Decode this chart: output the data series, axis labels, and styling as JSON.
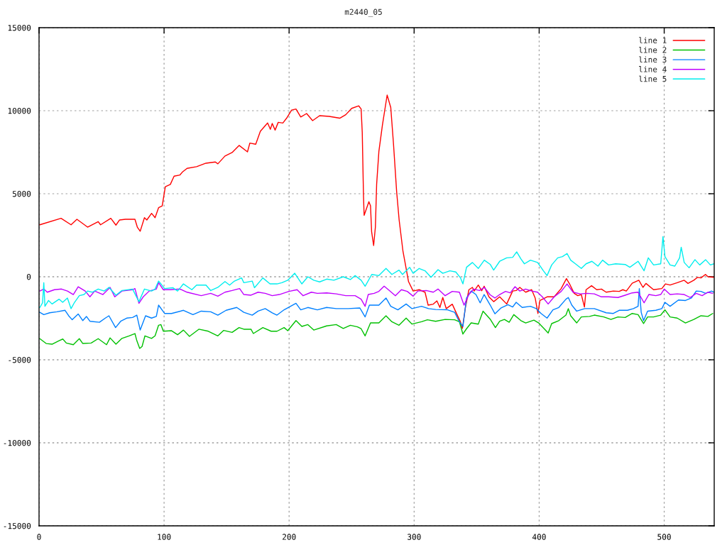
{
  "chart_data": {
    "type": "line",
    "title": "m2440_05",
    "xlim": [
      0,
      540
    ],
    "ylim": [
      -15000,
      15000
    ],
    "xticks": [
      0,
      100,
      200,
      300,
      400,
      500
    ],
    "yticks": [
      -15000,
      -10000,
      -5000,
      0,
      5000,
      10000,
      15000
    ],
    "grid": true,
    "legend": "top right",
    "marker": "none",
    "line_style": "solid",
    "series": [
      {
        "name": "line 1",
        "color": "#ff0000",
        "x": [
          0.6,
          17.6,
          25.6,
          30.3,
          38.8,
          47.3,
          49.2,
          57.4,
          61.5,
          64.4,
          69.1,
          76.7,
          78.6,
          80.9,
          84.3,
          86.2,
          90,
          92.8,
          95.6,
          98.5,
          101,
          105,
          108,
          112.7,
          114.6,
          118.4,
          126,
          133.5,
          141,
          143,
          148.7,
          154.4,
          160,
          166.7,
          168.6,
          173.3,
          177,
          182.8,
          185,
          186.5,
          188.8,
          191.3,
          195,
          198,
          202,
          205.5,
          209.3,
          214,
          218.8,
          224.4,
          232,
          240.5,
          245.3,
          250,
          255.7,
          257.6,
          258.5,
          259.5,
          260,
          263.8,
          265.1,
          266,
          267.6,
          269,
          270,
          271.8,
          274.6,
          278.4,
          281.3,
          283.5,
          286,
          288,
          291,
          293.6,
          295.5,
          299.2,
          304,
          308.7,
          311.2,
          315.3,
          318.2,
          320.6,
          322.9,
          325.7,
          330.5,
          334.3,
          337,
          338.6,
          341,
          343.8,
          346.6,
          348,
          351.3,
          354,
          356,
          359.8,
          363.6,
          368.4,
          374,
          378.8,
          381.6,
          384.5,
          389.2,
          394,
          396.8,
          399,
          400.6,
          406.3,
          412,
          417.6,
          421.8,
          424.3,
          428,
          430.9,
          433.7,
          436.2,
          437.5,
          441.9,
          446,
          449.8,
          453.6,
          459.3,
          464,
          466.9,
          469.7,
          474.4,
          479.7,
          483,
          485.4,
          491.5,
          498.1,
          501,
          504.7,
          510.4,
          516,
          519,
          523.7,
          526.5,
          529.4,
          533,
          535,
          539.8
        ],
        "values": [
          3130,
          3520,
          3130,
          3460,
          2990,
          3320,
          3130,
          3520,
          3110,
          3420,
          3460,
          3460,
          2990,
          2740,
          3560,
          3420,
          3820,
          3560,
          4160,
          4270,
          5420,
          5560,
          6060,
          6130,
          6300,
          6530,
          6630,
          6840,
          6910,
          6800,
          7270,
          7480,
          7910,
          7520,
          8050,
          7980,
          8760,
          9260,
          8880,
          9230,
          8830,
          9300,
          9260,
          9550,
          10040,
          10100,
          9620,
          9830,
          9400,
          9700,
          9660,
          9550,
          9760,
          10140,
          10290,
          10100,
          8690,
          4840,
          3700,
          4520,
          4270,
          2710,
          1880,
          2990,
          5560,
          7550,
          9120,
          10940,
          10190,
          7980,
          5130,
          3420,
          1570,
          500,
          -290,
          -860,
          -780,
          -930,
          -1710,
          -1650,
          -1450,
          -1850,
          -1250,
          -1920,
          -1650,
          -2280,
          -2710,
          -3110,
          -1850,
          -780,
          -640,
          -860,
          -500,
          -840,
          -570,
          -1210,
          -1500,
          -1210,
          -1640,
          -860,
          -830,
          -640,
          -930,
          -780,
          -1280,
          -2210,
          -1430,
          -1210,
          -1210,
          -710,
          -110,
          -430,
          -1000,
          -1140,
          -1070,
          -1820,
          -780,
          -540,
          -780,
          -740,
          -930,
          -860,
          -880,
          -780,
          -860,
          -390,
          -210,
          -640,
          -400,
          -780,
          -710,
          -430,
          -500,
          -360,
          -210,
          -400,
          -210,
          -40,
          -70,
          140,
          0,
          -30
        ]
      },
      {
        "name": "line 2",
        "color": "#00c000",
        "x": [
          0.6,
          5.7,
          10.4,
          16,
          19,
          21.8,
          27.4,
          32.2,
          35,
          41.7,
          47.3,
          54,
          56.8,
          61.5,
          66.3,
          72,
          76.7,
          78.2,
          80.5,
          82.4,
          84.7,
          90,
          92.8,
          95.6,
          97.5,
          99.4,
          106,
          110.8,
          115.5,
          120.3,
          127.8,
          135.4,
          143,
          147.7,
          154.4,
          160,
          163.8,
          169.5,
          171.4,
          179,
          185.6,
          190.3,
          196,
          198.9,
          205.5,
          210.2,
          215,
          219.7,
          230,
          237.7,
          243.3,
          249,
          254.7,
          257.6,
          260.8,
          265.1,
          271.8,
          277.5,
          282.2,
          287.9,
          293.6,
          298.3,
          305.9,
          310.6,
          317.2,
          324.8,
          332.4,
          336.2,
          339,
          341.9,
          345.6,
          351.3,
          355.1,
          360.8,
          365,
          368.4,
          372.2,
          376,
          379.7,
          385.4,
          389.2,
          395.8,
          399.6,
          407.2,
          410,
          415.7,
          421.4,
          423.3,
          425.2,
          430,
          433.7,
          440.3,
          444.1,
          451.7,
          457.4,
          463,
          468.8,
          474.4,
          479.1,
          483.5,
          486.7,
          491.5,
          497.2,
          500.6,
          504.7,
          510.4,
          517,
          523.7,
          529.4,
          535,
          538.8
        ],
        "values": [
          -3730,
          -4020,
          -4060,
          -3850,
          -3750,
          -3990,
          -4090,
          -3730,
          -4020,
          -3990,
          -3730,
          -4090,
          -3680,
          -4060,
          -3710,
          -3560,
          -3420,
          -3850,
          -4320,
          -4200,
          -3560,
          -3710,
          -3560,
          -2920,
          -2880,
          -3280,
          -3250,
          -3490,
          -3210,
          -3590,
          -3160,
          -3280,
          -3560,
          -3230,
          -3350,
          -3060,
          -3160,
          -3160,
          -3420,
          -3060,
          -3280,
          -3280,
          -3060,
          -3250,
          -2640,
          -2990,
          -2880,
          -3210,
          -2960,
          -2880,
          -3110,
          -2920,
          -3020,
          -3130,
          -3560,
          -2780,
          -2780,
          -2350,
          -2710,
          -2920,
          -2490,
          -2850,
          -2710,
          -2590,
          -2680,
          -2570,
          -2590,
          -2710,
          -3450,
          -3130,
          -2780,
          -2850,
          -2070,
          -2550,
          -3060,
          -2680,
          -2570,
          -2740,
          -2280,
          -2640,
          -2780,
          -2610,
          -2780,
          -3390,
          -2820,
          -2640,
          -2310,
          -1920,
          -2350,
          -2780,
          -2420,
          -2390,
          -2310,
          -2420,
          -2570,
          -2420,
          -2450,
          -2210,
          -2280,
          -2820,
          -2420,
          -2420,
          -2310,
          -1990,
          -2420,
          -2490,
          -2780,
          -2570,
          -2350,
          -2390,
          -2210
        ]
      },
      {
        "name": "line 3",
        "color": "#0080ff",
        "x": [
          0.6,
          3.8,
          8.5,
          14.2,
          20.8,
          23.7,
          26.5,
          31.3,
          35,
          37.9,
          40.7,
          48.3,
          53,
          55.9,
          61.2,
          65.3,
          70.1,
          74.8,
          78.2,
          80.9,
          85.2,
          90,
          93.8,
          95.6,
          100.4,
          106,
          115.5,
          123.1,
          129.7,
          137.3,
          143,
          149.6,
          158.1,
          163.8,
          170.5,
          175.2,
          180.9,
          186.5,
          190.3,
          196,
          205.5,
          209.3,
          215,
          222.6,
          230,
          237.7,
          247.2,
          256.6,
          260.8,
          264.2,
          271.8,
          277.5,
          281.3,
          287,
          293.6,
          298.3,
          305.9,
          311.5,
          317.2,
          326.7,
          332.4,
          336.2,
          339,
          341.9,
          345.6,
          349.4,
          352.8,
          356,
          360.8,
          364.6,
          369.3,
          375,
          378.8,
          381.6,
          386.4,
          393,
          397.7,
          401.5,
          406.3,
          411,
          415.7,
          421.4,
          423.3,
          426.1,
          430,
          436.5,
          444.1,
          453.6,
          459.3,
          464,
          470.6,
          475.4,
          479.1,
          480.1,
          481.6,
          483.5,
          486.7,
          493.3,
          498.1,
          500.6,
          504.7,
          511.4,
          517,
          521.8,
          525.6,
          529.4,
          533.1,
          537.9,
          539.8
        ],
        "values": [
          -2140,
          -2280,
          -2170,
          -2110,
          -2020,
          -2350,
          -2590,
          -2240,
          -2640,
          -2390,
          -2680,
          -2740,
          -2490,
          -2350,
          -3060,
          -2680,
          -2490,
          -2450,
          -2310,
          -3210,
          -2350,
          -2490,
          -2390,
          -1710,
          -2210,
          -2210,
          -2020,
          -2280,
          -2070,
          -2110,
          -2310,
          -2020,
          -1850,
          -2140,
          -2310,
          -2070,
          -1920,
          -2170,
          -2310,
          -1990,
          -1600,
          -1990,
          -1850,
          -1990,
          -1850,
          -1920,
          -1920,
          -1880,
          -2420,
          -1710,
          -1710,
          -1280,
          -1780,
          -1990,
          -1640,
          -1920,
          -1780,
          -1920,
          -1970,
          -1990,
          -2140,
          -2710,
          -2990,
          -1280,
          -860,
          -1070,
          -1570,
          -1070,
          -1700,
          -2230,
          -1890,
          -1680,
          -1820,
          -1540,
          -1850,
          -1780,
          -1920,
          -2210,
          -2490,
          -1990,
          -1850,
          -1350,
          -1250,
          -1710,
          -2070,
          -1920,
          -1920,
          -2170,
          -2210,
          -2020,
          -2020,
          -1920,
          -1780,
          -710,
          -2140,
          -2640,
          -2070,
          -2020,
          -1920,
          -1540,
          -1780,
          -1400,
          -1430,
          -1280,
          -860,
          -880,
          -1000,
          -860,
          -930
        ]
      },
      {
        "name": "line 4",
        "color": "#c000ff",
        "x": [
          0.6,
          3.8,
          6.6,
          12.3,
          18,
          22.7,
          27.4,
          31.3,
          36.9,
          40.7,
          44.5,
          51.1,
          56.8,
          60.6,
          66.3,
          74.8,
          76.7,
          79.9,
          83.3,
          88.1,
          93.8,
          95.6,
          99.4,
          105.1,
          112.7,
          118.4,
          129.7,
          137.3,
          143,
          148.7,
          154.4,
          160.4,
          163.8,
          169.5,
          175.2,
          180.9,
          186.5,
          192.2,
          199.8,
          206.4,
          211.2,
          217.8,
          222.6,
          230.1,
          237.7,
          245.3,
          252.8,
          257.6,
          260.8,
          263.3,
          268,
          271.8,
          276,
          279.4,
          285,
          289.8,
          294.5,
          299.2,
          303,
          309.7,
          315.3,
          319.1,
          324.8,
          330.5,
          336.2,
          339.9,
          343.8,
          347.6,
          352.3,
          356.1,
          360.8,
          364.6,
          368.4,
          373.1,
          376.9,
          380.7,
          384.5,
          389.2,
          394,
          398.7,
          402.5,
          407.2,
          412,
          417.6,
          422.3,
          427.1,
          432.8,
          438.5,
          444.1,
          449.8,
          455.5,
          463,
          468.8,
          474.4,
          479.1,
          483.9,
          487.7,
          493.3,
          497.2,
          500,
          504.7,
          510.4,
          516,
          520.8,
          525.6,
          530.3,
          535,
          538.8
        ],
        "values": [
          -860,
          -740,
          -930,
          -780,
          -740,
          -860,
          -1070,
          -600,
          -860,
          -1210,
          -860,
          -1070,
          -640,
          -1210,
          -860,
          -780,
          -710,
          -1600,
          -1210,
          -860,
          -740,
          -360,
          -780,
          -780,
          -740,
          -930,
          -1140,
          -1000,
          -1170,
          -930,
          -830,
          -710,
          -1070,
          -1110,
          -930,
          -1000,
          -1140,
          -1070,
          -880,
          -780,
          -1140,
          -930,
          -1000,
          -970,
          -1030,
          -1140,
          -1140,
          -1350,
          -1780,
          -1070,
          -1000,
          -880,
          -570,
          -780,
          -1140,
          -780,
          -880,
          -1170,
          -860,
          -830,
          -930,
          -740,
          -1140,
          -880,
          -930,
          -1710,
          -1070,
          -740,
          -830,
          -640,
          -1090,
          -1280,
          -1070,
          -880,
          -970,
          -600,
          -860,
          -740,
          -860,
          -930,
          -1210,
          -1640,
          -1210,
          -880,
          -430,
          -930,
          -1030,
          -1000,
          -1030,
          -1210,
          -1210,
          -1250,
          -1110,
          -970,
          -930,
          -1570,
          -1070,
          -1140,
          -1070,
          -740,
          -1070,
          -1030,
          -1070,
          -1250,
          -1000,
          -1140,
          -930,
          -1000
        ]
      },
      {
        "name": "line 5",
        "color": "#00eeee",
        "x": [
          0.6,
          2.8,
          3.8,
          4.7,
          7.6,
          10.4,
          16,
          18.9,
          22.7,
          25.6,
          28.4,
          32.2,
          36,
          38.8,
          42.6,
          47.3,
          52.1,
          55.9,
          61.5,
          66.3,
          74.8,
          79.9,
          84.3,
          90,
          92.8,
          95.6,
          97.5,
          100.4,
          107,
          110.8,
          115.5,
          122.2,
          126,
          133.5,
          137.3,
          143,
          148.7,
          152.4,
          156.3,
          162,
          163.8,
          170.5,
          172.3,
          179,
          184.7,
          190.3,
          194.2,
          198.9,
          204.5,
          210.2,
          215,
          219.7,
          224.4,
          230.1,
          235.8,
          243.3,
          249,
          252.8,
          257.6,
          260.8,
          266.1,
          271.8,
          277.5,
          282.2,
          287.9,
          290.7,
          296.4,
          299.2,
          304,
          308.7,
          313.5,
          319.1,
          322.9,
          328.6,
          333.3,
          337.1,
          339,
          341.9,
          346.6,
          351.3,
          356.1,
          360.8,
          363.6,
          368.4,
          374,
          378.8,
          382,
          385.4,
          388.2,
          393,
          398.7,
          403.4,
          406.3,
          410,
          414.8,
          418.6,
          422.3,
          425.2,
          429,
          433.7,
          437.5,
          442.2,
          447,
          450.7,
          455.5,
          461.2,
          468.8,
          472.5,
          479.1,
          483.9,
          487.3,
          491.5,
          497.2,
          499,
          500.6,
          504.7,
          508.5,
          512.3,
          513.6,
          516,
          519.9,
          524.6,
          528.4,
          533.1,
          536.9,
          539.8
        ],
        "values": [
          -1850,
          -1570,
          -360,
          -1780,
          -1430,
          -1640,
          -1350,
          -1540,
          -1280,
          -1920,
          -1540,
          -1140,
          -1070,
          -860,
          -930,
          -740,
          -860,
          -640,
          -1110,
          -830,
          -740,
          -1500,
          -740,
          -860,
          -740,
          -260,
          -430,
          -710,
          -660,
          -860,
          -430,
          -780,
          -500,
          -500,
          -830,
          -640,
          -290,
          -500,
          -260,
          -70,
          -360,
          -260,
          -660,
          -70,
          -430,
          -430,
          -360,
          -210,
          210,
          -430,
          0,
          -210,
          -310,
          -140,
          -210,
          0,
          -170,
          70,
          -210,
          -570,
          140,
          70,
          500,
          140,
          400,
          140,
          570,
          210,
          500,
          360,
          -30,
          430,
          210,
          360,
          290,
          -70,
          -430,
          570,
          860,
          500,
          1000,
          750,
          400,
          930,
          1140,
          1170,
          1500,
          1070,
          780,
          1000,
          860,
          360,
          70,
          710,
          1140,
          1210,
          1400,
          1000,
          780,
          500,
          780,
          930,
          640,
          1000,
          710,
          780,
          740,
          570,
          930,
          360,
          1140,
          710,
          780,
          2420,
          1210,
          710,
          640,
          1140,
          1780,
          860,
          540,
          1030,
          710,
          1030,
          710,
          780
        ]
      }
    ]
  }
}
